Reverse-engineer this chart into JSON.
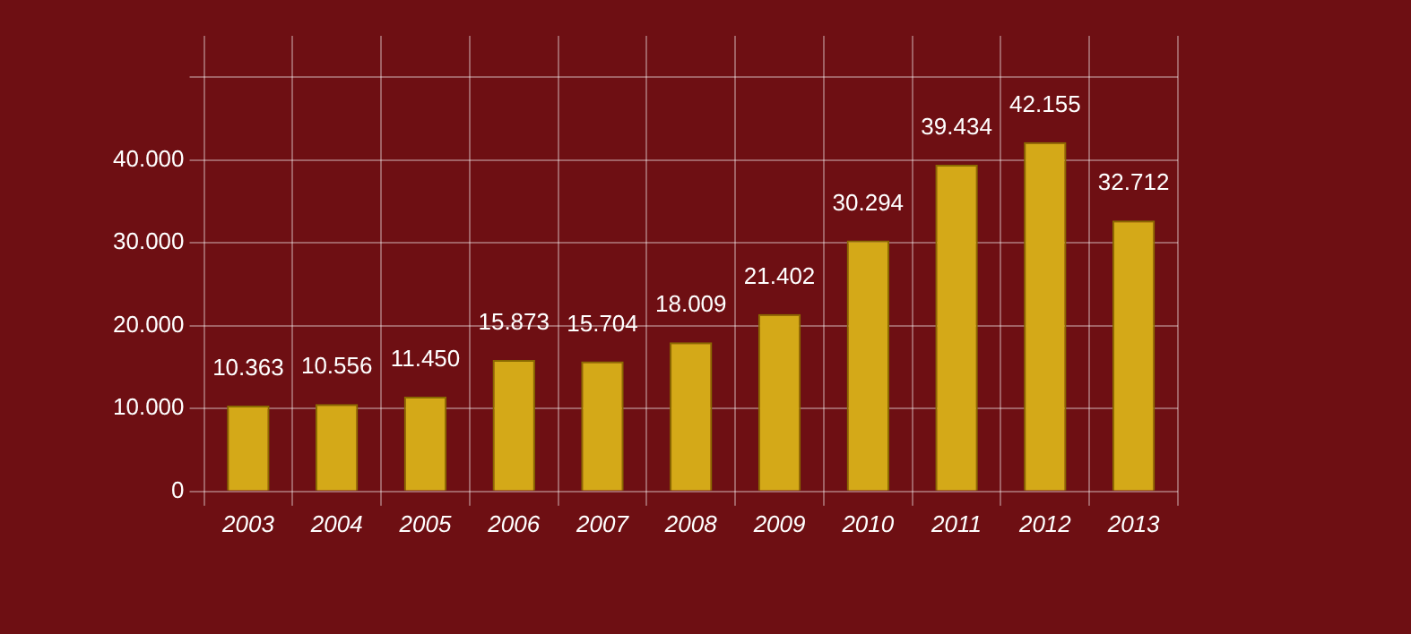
{
  "chart_data": {
    "type": "bar",
    "categories": [
      "2003",
      "2004",
      "2005",
      "2006",
      "2007",
      "2008",
      "2009",
      "2010",
      "2011",
      "2012",
      "2013"
    ],
    "values": [
      10363,
      10556,
      11450,
      15873,
      15704,
      18009,
      21402,
      30294,
      39434,
      42155,
      32712
    ],
    "value_labels": [
      "10.363",
      "10.556",
      "11.450",
      "15.873",
      "15.704",
      "18.009",
      "21.402",
      "30.294",
      "39.434",
      "42.155",
      "32.712"
    ],
    "color": "#d4a918",
    "ylim": [
      0,
      55000
    ],
    "yticks": [
      {
        "value": 0,
        "label": "0"
      },
      {
        "value": 10000,
        "label": "10.000"
      },
      {
        "value": 20000,
        "label": "20.000"
      },
      {
        "value": 30000,
        "label": "30.000"
      },
      {
        "value": 40000,
        "label": "40.000"
      },
      {
        "value": 50000,
        "label": null
      }
    ],
    "grid": true
  }
}
